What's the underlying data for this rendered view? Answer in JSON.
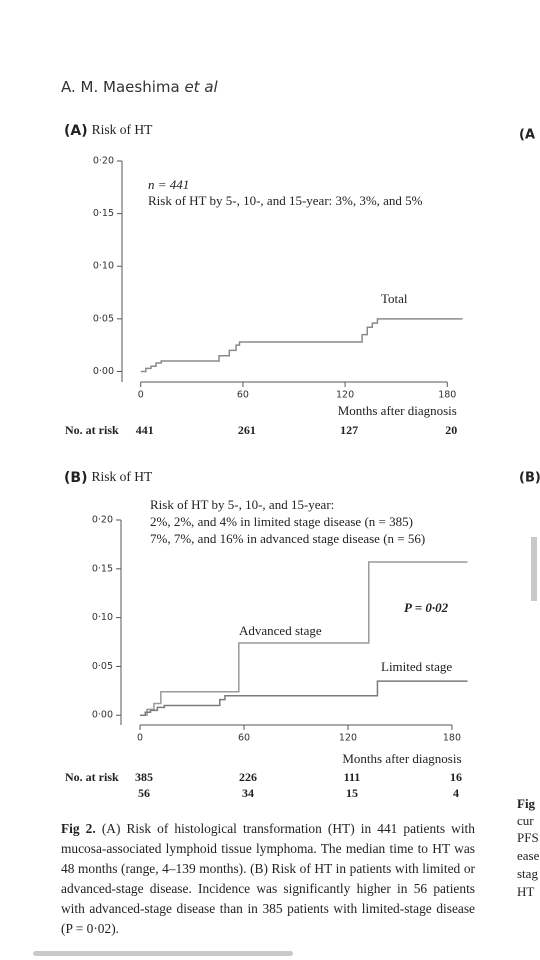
{
  "header": {
    "authors": "A. M. Maeshima",
    "suffix": "et al"
  },
  "chart_data": [
    {
      "type": "line",
      "step": true,
      "panel": "(A)",
      "title": "Risk of HT",
      "annotations": [
        "n = 441",
        "Risk of HT by 5-, 10-, and 15-year: 3%, 3%, and 5%",
        "Total"
      ],
      "x_label": "Months after diagnosis",
      "xlim": [
        -11,
        191
      ],
      "xticks": [
        0,
        60,
        120,
        180
      ],
      "ylim": [
        -0.01,
        0.2
      ],
      "yticks": [
        {
          "value": 0,
          "label": "0·00"
        },
        {
          "value": 0.05,
          "label": "0·05"
        },
        {
          "value": 0.1,
          "label": "0·10"
        },
        {
          "value": 0.15,
          "label": "0·15"
        },
        {
          "value": 0.2,
          "label": "0·20"
        }
      ],
      "series": [
        {
          "name": "Total",
          "color": "#8a8a8a",
          "x": [
            0,
            3,
            6,
            9,
            12,
            46,
            52,
            56,
            58,
            130,
            133,
            136,
            139,
            189
          ],
          "values": [
            0,
            0.003,
            0.005,
            0.008,
            0.01,
            0.015,
            0.02,
            0.025,
            0.028,
            0.035,
            0.042,
            0.046,
            0.05,
            0.05
          ]
        }
      ],
      "at_risk": {
        "label": "No. at risk",
        "rows": [
          [
            441,
            261,
            127,
            20
          ]
        ]
      }
    },
    {
      "type": "line",
      "step": true,
      "panel": "(B)",
      "title": "Risk of HT",
      "annotations": [
        "Risk of HT by 5-, 10-, and 15-year:",
        "2%, 2%, and 4% in limited stage disease (n = 385)",
        "7%, 7%, and 16% in advanced stage disease (n = 56)",
        "P = 0·02",
        "Advanced stage",
        "Limited stage"
      ],
      "x_label": "Months after diagnosis",
      "xlim": [
        -11,
        191
      ],
      "xticks": [
        0,
        60,
        120,
        180
      ],
      "ylim": [
        -0.01,
        0.2
      ],
      "yticks": [
        {
          "value": 0,
          "label": "0·00"
        },
        {
          "value": 0.05,
          "label": "0·05"
        },
        {
          "value": 0.1,
          "label": "0·10"
        },
        {
          "value": 0.15,
          "label": "0·15"
        },
        {
          "value": 0.2,
          "label": "0·20"
        }
      ],
      "series": [
        {
          "name": "Advanced stage",
          "color": "#9a9a9a",
          "x": [
            0,
            4,
            8,
            12,
            57,
            132,
            189
          ],
          "values": [
            0,
            0.006,
            0.012,
            0.024,
            0.074,
            0.157,
            0.157
          ]
        },
        {
          "name": "Limited stage",
          "color": "#7a7a7a",
          "x": [
            0,
            3,
            6,
            10,
            14,
            46,
            49,
            137,
            189
          ],
          "values": [
            0,
            0.003,
            0.005,
            0.008,
            0.01,
            0.016,
            0.02,
            0.035,
            0.035
          ]
        }
      ],
      "at_risk": {
        "label": "No. at risk",
        "rows": [
          [
            385,
            226,
            111,
            16
          ],
          [
            56,
            34,
            15,
            4
          ]
        ]
      }
    }
  ],
  "caption": {
    "label": "Fig 2.",
    "text": "(A) Risk of histological transformation (HT) in 441 patients with mucosa-associated lymphoid tissue lymphoma. The median time to HT was 48 months (range, 4–139 months). (B) Risk of HT in patients with limited or advanced-stage disease. Incidence was significantly higher in 56 patients with advanced-stage disease than in 385 patients with limited-stage disease (P = 0·02)."
  },
  "side_fragments": [
    "(A",
    "(B)",
    "Fig",
    "cur",
    "PFS",
    "ease",
    "stag",
    "HT"
  ]
}
